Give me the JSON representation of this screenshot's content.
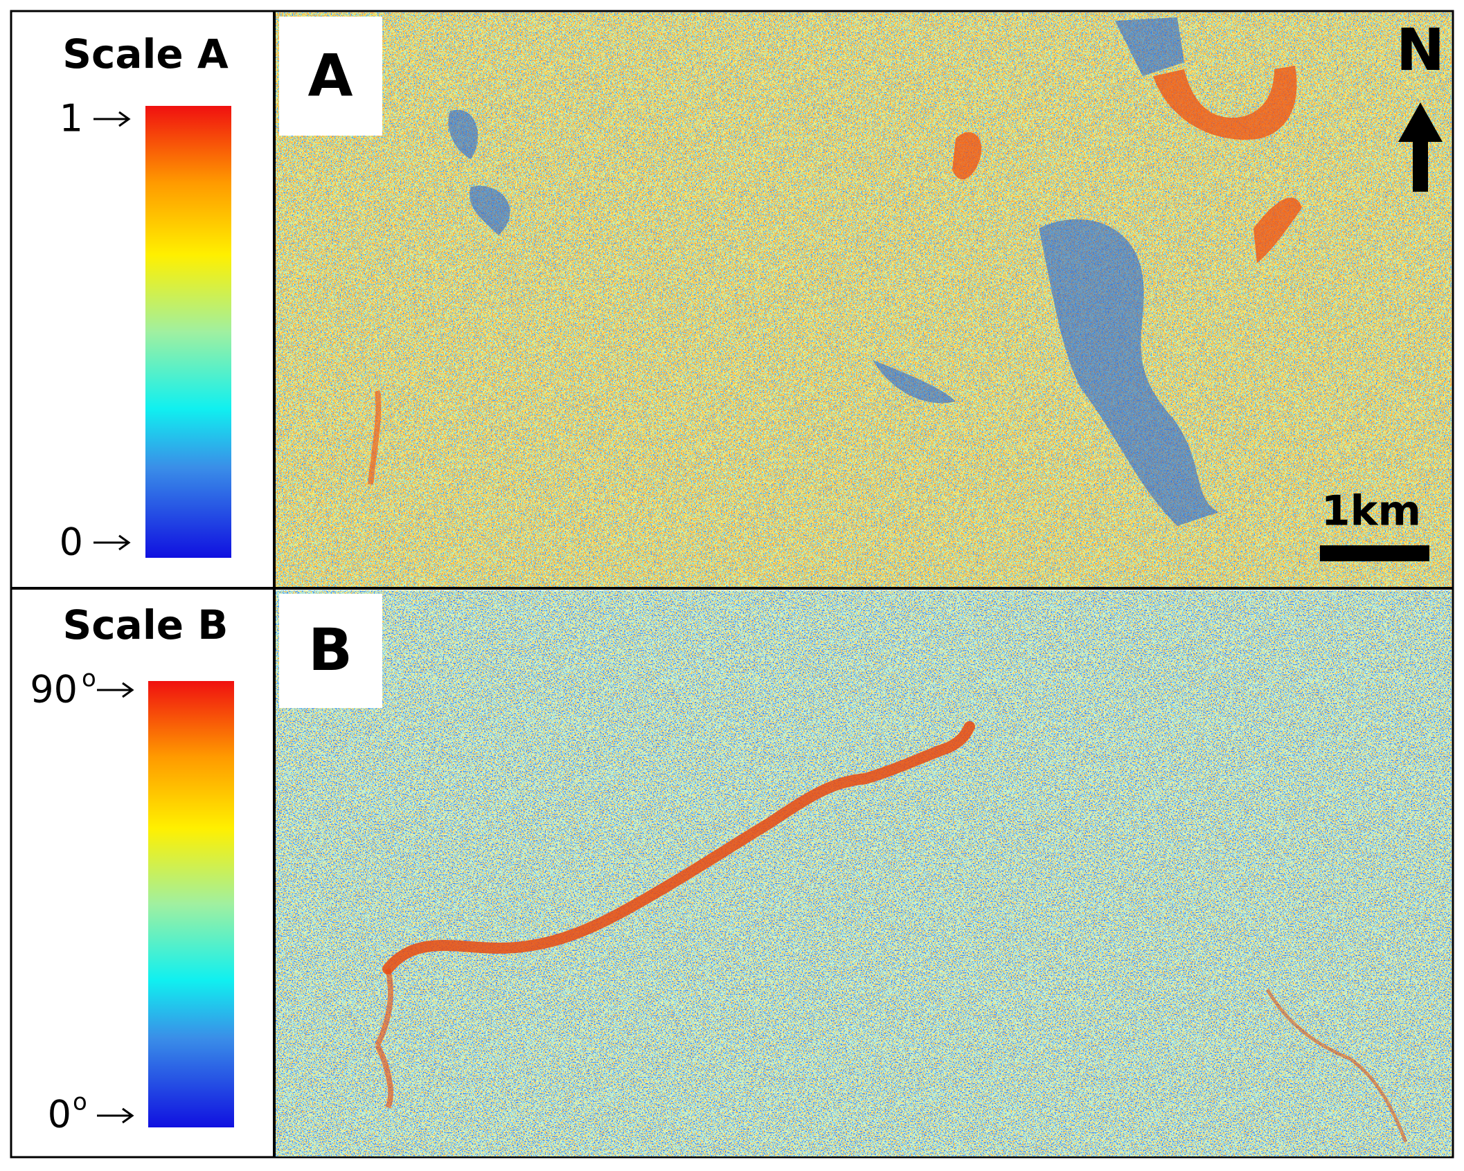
{
  "panels": [
    {
      "scale_title": "Scale A",
      "max_label": "1",
      "min_label": "0",
      "letter": "A"
    },
    {
      "scale_title": "Scale B",
      "max_label": "90",
      "min_label": "0",
      "unit": "o",
      "letter": "B"
    }
  ],
  "north": "N",
  "scale_bar": "1km"
}
